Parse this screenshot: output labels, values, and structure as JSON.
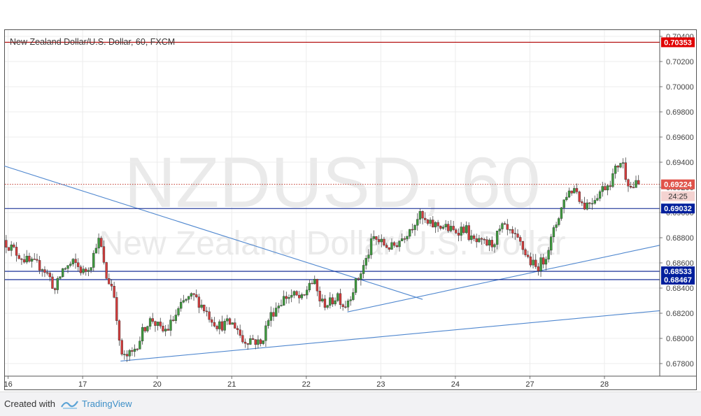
{
  "title": "New Zealand Dollar/U.S. Dollar, 60, FXCM",
  "watermark": {
    "symbol": "NZDUSD, 60",
    "name": "New Zealand Dollar/U.S. Dollar"
  },
  "footer": {
    "created_with": "Created with",
    "brand": "TradingView"
  },
  "colors": {
    "up": "#3e9a3e",
    "down": "#d33c3c",
    "wick": "#444444",
    "trendline": "#4f87cf",
    "resistance": "#b00000",
    "support": "#001a8c",
    "price_line": "#c0392b"
  },
  "chart_data": {
    "type": "candlestick",
    "ylim": [
      0.677,
      0.7045
    ],
    "y_ticks": [
      "0.67800",
      "0.68000",
      "0.68200",
      "0.68400",
      "0.68600",
      "0.68800",
      "0.69000",
      "0.69200",
      "0.69400",
      "0.69600",
      "0.69800",
      "0.70000",
      "0.70200",
      "0.70400"
    ],
    "x_ticks": [
      {
        "label": "16",
        "t": 5
      },
      {
        "label": "17",
        "t": 121
      },
      {
        "label": "20",
        "t": 237
      },
      {
        "label": "21",
        "t": 353
      },
      {
        "label": "22",
        "t": 469
      },
      {
        "label": "23",
        "t": 585
      },
      {
        "label": "24",
        "t": 701
      },
      {
        "label": "27",
        "t": 817
      },
      {
        "label": "28",
        "t": 933
      }
    ],
    "hours_visible": 1019,
    "horizontal_levels": [
      {
        "value": 0.70353,
        "label": "0.70353",
        "style": "resistance"
      },
      {
        "value": 0.69032,
        "label": "0.69032",
        "style": "support"
      },
      {
        "value": 0.68533,
        "label": "0.68533",
        "style": "support"
      },
      {
        "value": 0.68467,
        "label": "0.68467",
        "style": "support"
      }
    ],
    "current_price": {
      "value": 0.69224,
      "label": "0.69224",
      "countdown": "24:25"
    },
    "trendlines": [
      {
        "points": [
          [
            -1,
            0.6937
          ],
          [
            650,
            0.6831
          ]
        ]
      },
      {
        "points": [
          [
            533,
            0.6821
          ],
          [
            1019,
            0.6874
          ]
        ]
      },
      {
        "points": [
          [
            180,
            0.6782
          ],
          [
            1019,
            0.6822
          ]
        ]
      }
    ],
    "anchors": [
      {
        "t": 0,
        "p": 0.6878
      },
      {
        "t": 20,
        "p": 0.6868
      },
      {
        "t": 40,
        "p": 0.686
      },
      {
        "t": 60,
        "p": 0.6857
      },
      {
        "t": 72,
        "p": 0.6848
      },
      {
        "t": 80,
        "p": 0.6838
      },
      {
        "t": 92,
        "p": 0.6855
      },
      {
        "t": 110,
        "p": 0.686
      },
      {
        "t": 125,
        "p": 0.6852
      },
      {
        "t": 138,
        "p": 0.6862
      },
      {
        "t": 146,
        "p": 0.688
      },
      {
        "t": 153,
        "p": 0.687
      },
      {
        "t": 158,
        "p": 0.685
      },
      {
        "t": 168,
        "p": 0.6842
      },
      {
        "t": 174,
        "p": 0.683
      },
      {
        "t": 180,
        "p": 0.6795
      },
      {
        "t": 186,
        "p": 0.6784
      },
      {
        "t": 200,
        "p": 0.6788
      },
      {
        "t": 212,
        "p": 0.68
      },
      {
        "t": 222,
        "p": 0.6812
      },
      {
        "t": 232,
        "p": 0.6815
      },
      {
        "t": 246,
        "p": 0.6805
      },
      {
        "t": 256,
        "p": 0.6808
      },
      {
        "t": 270,
        "p": 0.682
      },
      {
        "t": 282,
        "p": 0.683
      },
      {
        "t": 296,
        "p": 0.6833
      },
      {
        "t": 306,
        "p": 0.6828
      },
      {
        "t": 320,
        "p": 0.6818
      },
      {
        "t": 334,
        "p": 0.681
      },
      {
        "t": 352,
        "p": 0.6812
      },
      {
        "t": 362,
        "p": 0.681
      },
      {
        "t": 372,
        "p": 0.6798
      },
      {
        "t": 386,
        "p": 0.68
      },
      {
        "t": 400,
        "p": 0.6795
      },
      {
        "t": 412,
        "p": 0.6815
      },
      {
        "t": 424,
        "p": 0.6825
      },
      {
        "t": 438,
        "p": 0.6833
      },
      {
        "t": 452,
        "p": 0.6834
      },
      {
        "t": 466,
        "p": 0.683
      },
      {
        "t": 476,
        "p": 0.6845
      },
      {
        "t": 484,
        "p": 0.6843
      },
      {
        "t": 494,
        "p": 0.6828
      },
      {
        "t": 508,
        "p": 0.6828
      },
      {
        "t": 520,
        "p": 0.6835
      },
      {
        "t": 530,
        "p": 0.6825
      },
      {
        "t": 538,
        "p": 0.6833
      },
      {
        "t": 552,
        "p": 0.6848
      },
      {
        "t": 564,
        "p": 0.6862
      },
      {
        "t": 575,
        "p": 0.688
      },
      {
        "t": 590,
        "p": 0.6875
      },
      {
        "t": 604,
        "p": 0.6872
      },
      {
        "t": 620,
        "p": 0.688
      },
      {
        "t": 636,
        "p": 0.689
      },
      {
        "t": 646,
        "p": 0.6898
      },
      {
        "t": 660,
        "p": 0.689
      },
      {
        "t": 680,
        "p": 0.689
      },
      {
        "t": 700,
        "p": 0.6885
      },
      {
        "t": 718,
        "p": 0.6888
      },
      {
        "t": 728,
        "p": 0.6878
      },
      {
        "t": 742,
        "p": 0.6875
      },
      {
        "t": 760,
        "p": 0.6875
      },
      {
        "t": 776,
        "p": 0.6888
      },
      {
        "t": 790,
        "p": 0.6882
      },
      {
        "t": 804,
        "p": 0.6875
      },
      {
        "t": 818,
        "p": 0.6862
      },
      {
        "t": 828,
        "p": 0.6856
      },
      {
        "t": 840,
        "p": 0.6862
      },
      {
        "t": 852,
        "p": 0.6878
      },
      {
        "t": 864,
        "p": 0.6898
      },
      {
        "t": 876,
        "p": 0.6915
      },
      {
        "t": 890,
        "p": 0.692
      },
      {
        "t": 902,
        "p": 0.6905
      },
      {
        "t": 916,
        "p": 0.691
      },
      {
        "t": 930,
        "p": 0.6918
      },
      {
        "t": 944,
        "p": 0.6925
      },
      {
        "t": 956,
        "p": 0.6938
      },
      {
        "t": 962,
        "p": 0.6942
      },
      {
        "t": 968,
        "p": 0.693
      },
      {
        "t": 976,
        "p": 0.692
      },
      {
        "t": 984,
        "p": 0.6922
      }
    ]
  }
}
